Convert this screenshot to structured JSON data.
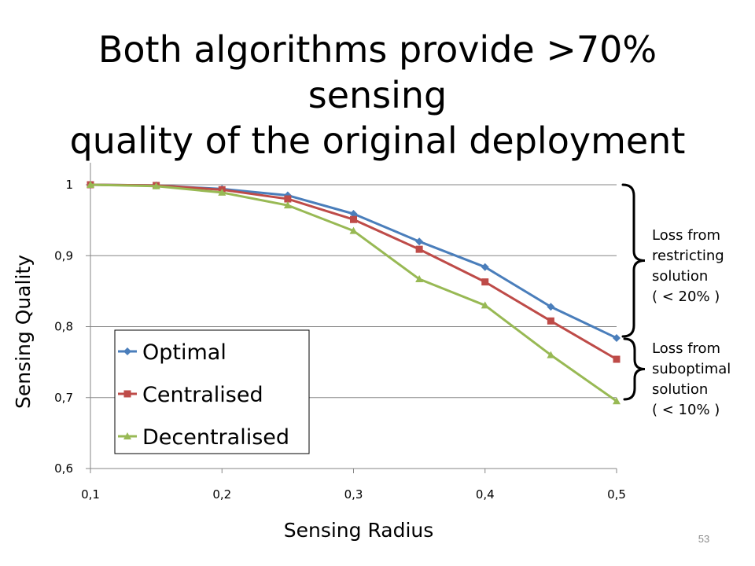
{
  "slide": {
    "title_lines": [
      "Both algorithms provide >70% sensing",
      "quality of the original deployment"
    ],
    "slide_number": "53"
  },
  "annotations": [
    {
      "lines": [
        "Loss from",
        "restricting",
        "solution",
        "( < 20% )"
      ]
    },
    {
      "lines": [
        "Loss from",
        "suboptimal",
        "solution",
        "( < 10% )"
      ]
    }
  ],
  "colors": {
    "optimal": "#4a7ebb",
    "centralised": "#be4b48",
    "decentralised": "#98b954",
    "gridline": "#868686",
    "axis": "#868686"
  },
  "chart_data": {
    "type": "line",
    "xlabel": "Sensing Radius",
    "ylabel": "Sensing Quality",
    "xlim": [
      0.1,
      0.5
    ],
    "ylim": [
      0.6,
      1.0
    ],
    "x_ticks": [
      "0,1",
      "0,2",
      "0,3",
      "0,4",
      "0,5"
    ],
    "y_ticks": [
      "0,6",
      "0,7",
      "0,8",
      "0,9",
      "1"
    ],
    "grid": "horizontal",
    "legend_position": "bottom-left inside",
    "x": [
      0.1,
      0.15,
      0.2,
      0.25,
      0.3,
      0.35,
      0.4,
      0.45,
      0.5
    ],
    "series": [
      {
        "name": "Optimal",
        "marker": "diamond",
        "values": [
          1.0,
          0.999,
          0.994,
          0.985,
          0.959,
          0.92,
          0.884,
          0.828,
          0.784
        ]
      },
      {
        "name": "Centralised",
        "marker": "square",
        "values": [
          1.0,
          0.999,
          0.993,
          0.98,
          0.951,
          0.909,
          0.863,
          0.808,
          0.754
        ]
      },
      {
        "name": "Decentralised",
        "marker": "triangle",
        "values": [
          1.0,
          0.998,
          0.989,
          0.971,
          0.935,
          0.867,
          0.83,
          0.76,
          0.695
        ]
      }
    ]
  }
}
